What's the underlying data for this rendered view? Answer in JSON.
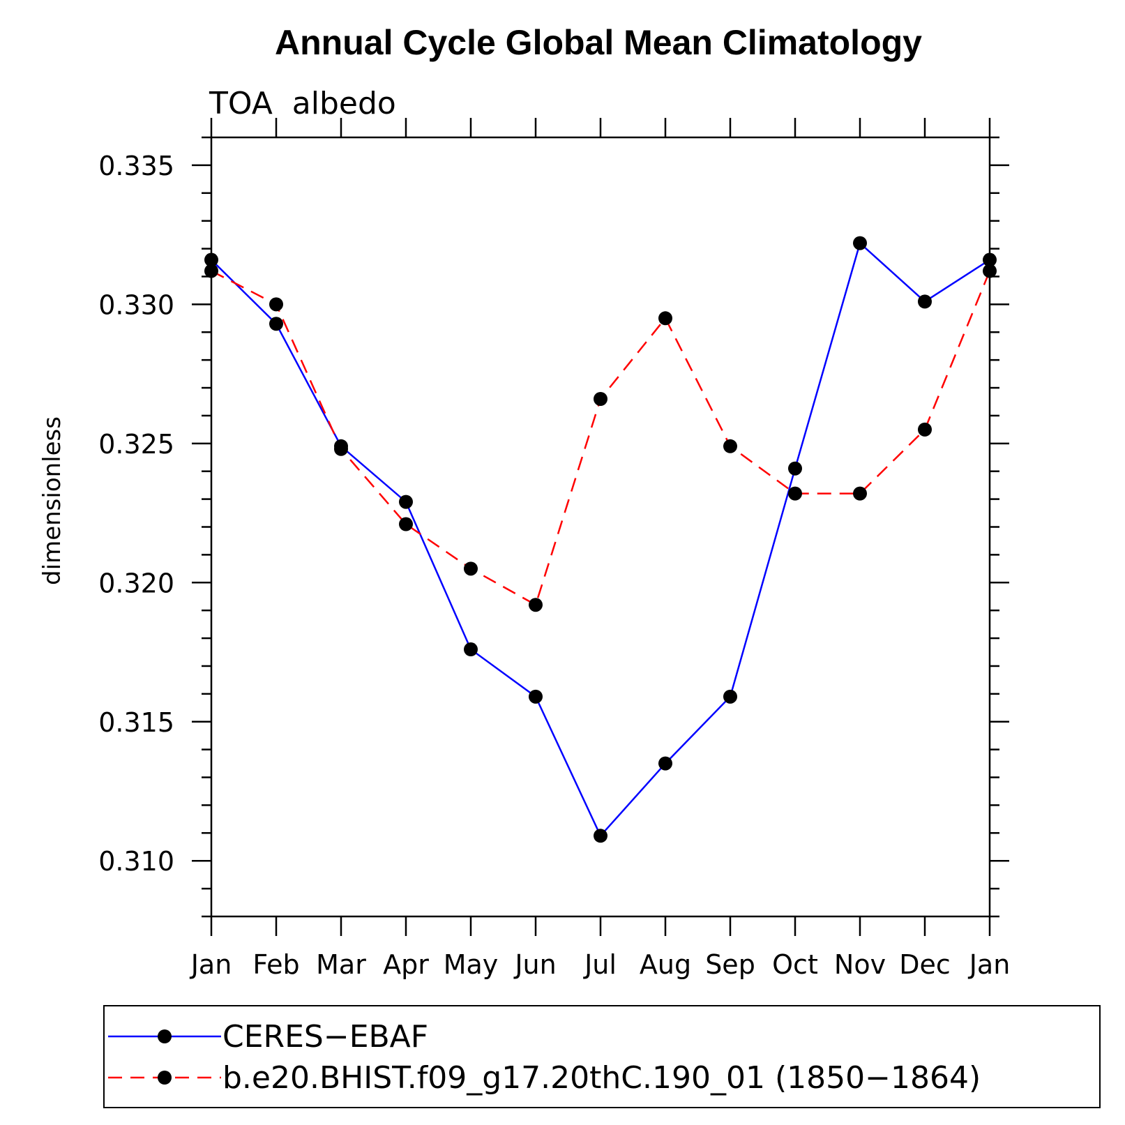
{
  "chart_data": {
    "type": "line",
    "title": "Annual Cycle Global Mean Climatology",
    "subtitle": "TOA  albedo",
    "ylabel": "dimensionless",
    "xlabel": "",
    "categories": [
      "Jan",
      "Feb",
      "Mar",
      "Apr",
      "May",
      "Jun",
      "Jul",
      "Aug",
      "Sep",
      "Oct",
      "Nov",
      "Dec",
      "Jan"
    ],
    "ylim": [
      0.308,
      0.336
    ],
    "yticks": [
      0.31,
      0.315,
      0.32,
      0.325,
      0.33,
      0.335
    ],
    "ytick_labels": [
      "0.310",
      "0.315",
      "0.320",
      "0.325",
      "0.330",
      "0.335"
    ],
    "y_minor_step": 0.001,
    "grid": false,
    "legend_position": "bottom",
    "series": [
      {
        "name": "CERES−EBAF",
        "color": "#0000ff",
        "style": "solid",
        "marker": "filled-circle",
        "values": [
          0.3316,
          0.3293,
          0.3249,
          0.3229,
          0.3176,
          0.3159,
          0.3109,
          0.3135,
          0.3159,
          0.3241,
          0.3322,
          0.3301,
          0.3316
        ]
      },
      {
        "name": "b.e20.BHIST.f09_g17.20thC.190_01 (1850−1864)",
        "color": "#ff0000",
        "style": "dashed",
        "marker": "filled-circle",
        "values": [
          0.3312,
          0.33,
          0.3248,
          0.3221,
          0.3205,
          0.3192,
          0.3266,
          0.3295,
          0.3249,
          0.3232,
          0.3232,
          0.3255,
          0.3312
        ]
      }
    ]
  }
}
